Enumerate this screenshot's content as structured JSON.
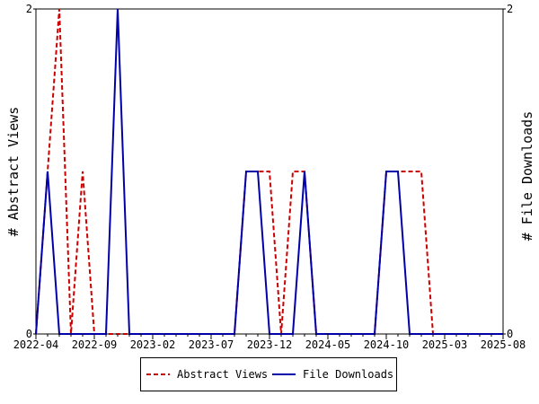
{
  "chart_data": {
    "type": "line",
    "x_tick_labels": [
      "2022-04",
      "2022-09",
      "2023-02",
      "2023-07",
      "2023-12",
      "2024-05",
      "2024-10",
      "2025-03",
      "2025-08"
    ],
    "x": [
      "2022-04",
      "2022-05",
      "2022-06",
      "2022-07",
      "2022-08",
      "2022-09",
      "2022-10",
      "2022-11",
      "2022-12",
      "2023-01",
      "2023-02",
      "2023-03",
      "2023-04",
      "2023-05",
      "2023-06",
      "2023-07",
      "2023-08",
      "2023-09",
      "2023-10",
      "2023-11",
      "2023-12",
      "2024-01",
      "2024-02",
      "2024-03",
      "2024-04",
      "2024-05",
      "2024-06",
      "2024-07",
      "2024-08",
      "2024-09",
      "2024-10",
      "2024-11",
      "2024-12",
      "2025-01",
      "2025-02",
      "2025-03",
      "2025-04",
      "2025-05",
      "2025-06",
      "2025-07",
      "2025-08"
    ],
    "series": [
      {
        "name": "Abstract Views",
        "axis": "left",
        "color": "#cc0000",
        "dash": "dashed",
        "values": [
          0,
          1,
          2,
          0,
          1,
          0,
          0,
          0,
          0,
          0,
          0,
          0,
          0,
          0,
          0,
          0,
          0,
          0,
          1,
          1,
          1,
          0,
          1,
          1,
          0,
          0,
          0,
          0,
          0,
          0,
          1,
          1,
          1,
          1,
          0,
          0,
          0,
          0,
          0,
          0,
          0
        ]
      },
      {
        "name": "File Downloads",
        "axis": "right",
        "color": "#0000aa",
        "dash": "solid",
        "values": [
          0,
          1,
          0,
          0,
          0,
          0,
          0,
          2,
          0,
          0,
          0,
          0,
          0,
          0,
          0,
          0,
          0,
          0,
          1,
          1,
          0,
          0,
          0,
          1,
          0,
          0,
          0,
          0,
          0,
          0,
          1,
          1,
          0,
          0,
          0,
          0,
          0,
          0,
          0,
          0,
          0
        ]
      }
    ],
    "ylabel_left": "# Abstract Views",
    "ylabel_right": "# File Downloads",
    "ylim": [
      0,
      2
    ],
    "y_ticks": [
      "0",
      "2"
    ],
    "grid": false,
    "legend_position": "bottom"
  }
}
